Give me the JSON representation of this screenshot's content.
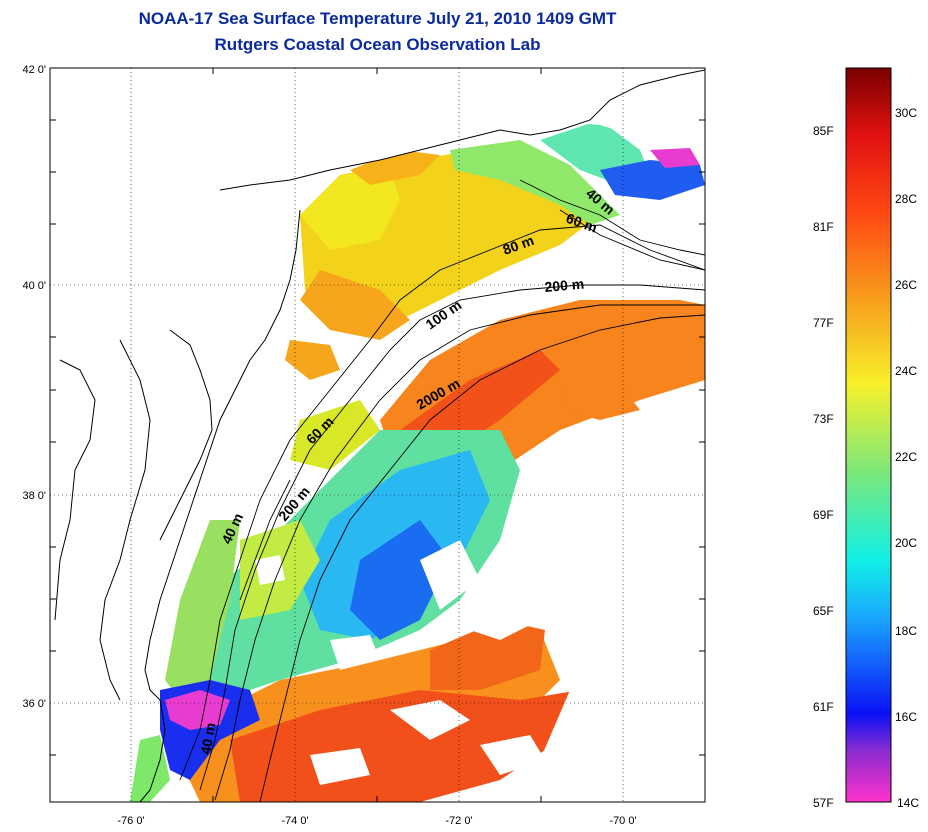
{
  "header": {
    "title": "NOAA-17 Sea Surface Temperature July 21, 2010 1409 GMT",
    "subtitle": "Rutgers Coastal Ocean Observation Lab"
  },
  "map": {
    "lon_ticks": [
      "-76 0'",
      "-74 0'",
      "-72 0'",
      "-70 0'"
    ],
    "lat_ticks": [
      "42 0'",
      "40 0'",
      "38 0'",
      "36 0'"
    ],
    "depth_labels": [
      "40 m",
      "60 m",
      "80 m",
      "200 m",
      "100 m",
      "2000 m",
      "60 m",
      "200 m",
      "40 m",
      "40 m"
    ]
  },
  "colorbar": {
    "fahrenheit": [
      "85F",
      "81F",
      "77F",
      "73F",
      "69F",
      "65F",
      "61F",
      "57F"
    ],
    "celsius": [
      "30C",
      "28C",
      "26C",
      "24C",
      "22C",
      "20C",
      "18C",
      "16C",
      "14C"
    ],
    "colors": [
      "#ff33cc",
      "#7a2ccf",
      "#0a10f5",
      "#1aa6ff",
      "#11f0e6",
      "#7de87a",
      "#f7f02a",
      "#f79a1c",
      "#ff4a14",
      "#e11010",
      "#7a0000"
    ]
  }
}
